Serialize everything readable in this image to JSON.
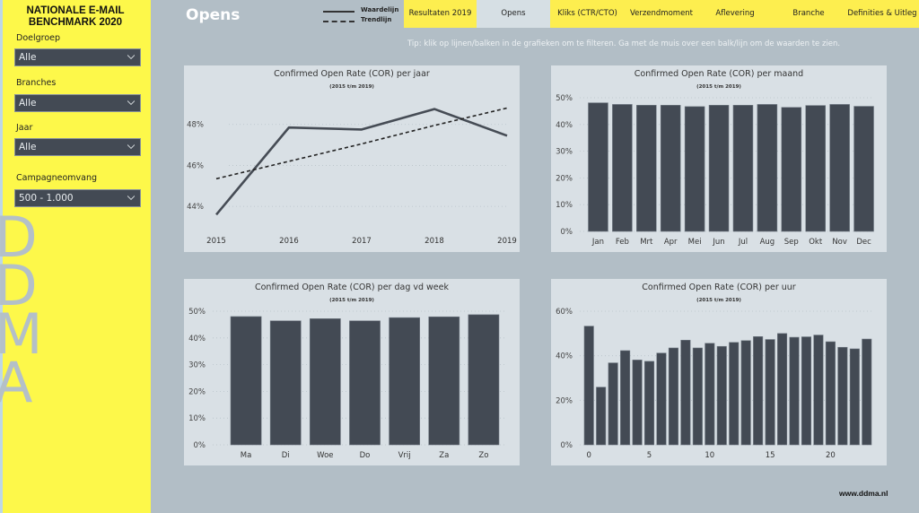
{
  "sidebar": {
    "title_line1": "NATIONALE E-MAIL",
    "title_line2": "BENCHMARK 2020",
    "watermark": "DDMA",
    "filters": [
      {
        "label": "Doelgroep",
        "value": "Alle",
        "icon": "chevron-down-icon"
      },
      {
        "label": "Branches",
        "value": "Alle",
        "icon": "chevron-down-icon"
      },
      {
        "label": "Jaar",
        "value": "Alle",
        "icon": "chevron-down-icon"
      },
      {
        "label": "Campagneomvang",
        "value": "500 - 1.000",
        "icon": "chevron-down-icon"
      }
    ]
  },
  "header": {
    "page_title": "Opens",
    "legend": {
      "solid": "Waardelijn",
      "dashed": "Trendlijn"
    },
    "tabs": [
      {
        "label": "Resultaten 2019",
        "active": false
      },
      {
        "label": "Opens",
        "active": true
      },
      {
        "label": "Kliks (CTR/CTO)",
        "active": false
      },
      {
        "label": "Verzendmoment",
        "active": false
      },
      {
        "label": "Aflevering",
        "active": false
      },
      {
        "label": "Branche",
        "active": false
      },
      {
        "label": "Definities & Uitleg",
        "active": false
      }
    ],
    "tip": "Tip: klik op lijnen/balken in de grafieken om te filteren. Ga met de muis over een balk/lijn om de waarden te zien."
  },
  "colors": {
    "sidebar_bg": "#fdf84a",
    "page_bg": "#b2bec6",
    "panel_bg": "#d9e0e5",
    "bar": "#434a54",
    "tab_yellow": "#fdee4f",
    "tab_active": "#d6dfe4"
  },
  "footer": {
    "url": "www.ddma.nl"
  },
  "chart_data": [
    {
      "id": "per-jaar",
      "type": "line",
      "title": "Confirmed Open Rate (COR) per jaar",
      "subtitle": "(2015 t/m 2019)",
      "categories": [
        "2015",
        "2016",
        "2017",
        "2018",
        "2019"
      ],
      "series": [
        {
          "name": "Waardelijn",
          "style": "solid",
          "values": [
            43.6,
            47.85,
            47.75,
            48.75,
            47.45
          ]
        },
        {
          "name": "Trendlijn",
          "style": "dashed",
          "values": [
            45.35,
            46.2,
            47.05,
            47.95,
            48.8
          ]
        }
      ],
      "yticks": [
        44,
        46,
        48
      ],
      "ytick_labels": [
        "44%",
        "46%",
        "48%"
      ],
      "ylim": [
        43.0,
        49.3
      ],
      "grid": true
    },
    {
      "id": "per-maand",
      "type": "bar",
      "title": "Confirmed Open Rate (COR) per maand",
      "subtitle": "(2015 t/m 2019)",
      "categories": [
        "Jan",
        "Feb",
        "Mrt",
        "Apr",
        "Mei",
        "Jun",
        "Jul",
        "Aug",
        "Sep",
        "Okt",
        "Nov",
        "Dec"
      ],
      "values": [
        48.1,
        47.5,
        47.2,
        47.2,
        46.7,
        47.2,
        47.2,
        47.5,
        46.4,
        47.1,
        47.5,
        46.8
      ],
      "yticks": [
        0,
        10,
        20,
        30,
        40,
        50
      ],
      "ytick_labels": [
        "0%",
        "10%",
        "20%",
        "30%",
        "40%",
        "50%"
      ],
      "ylim": [
        0,
        50
      ],
      "grid": true
    },
    {
      "id": "per-dag",
      "type": "bar",
      "title": "Confirmed Open Rate (COR) per dag vd week",
      "subtitle": "(2015 t/m 2019)",
      "categories": [
        "Ma",
        "Di",
        "Woe",
        "Do",
        "Vrij",
        "Za",
        "Zo"
      ],
      "values": [
        48.0,
        46.4,
        47.2,
        46.4,
        47.6,
        47.9,
        48.7
      ],
      "yticks": [
        0,
        10,
        20,
        30,
        40,
        50
      ],
      "ytick_labels": [
        "0%",
        "10%",
        "20%",
        "30%",
        "40%",
        "50%"
      ],
      "ylim": [
        0,
        50
      ],
      "grid": true
    },
    {
      "id": "per-uur",
      "type": "bar",
      "title": "Confirmed Open Rate (COR) per uur",
      "subtitle": "(2015 t/m 2019)",
      "categories": [
        "0",
        "1",
        "2",
        "3",
        "4",
        "5",
        "6",
        "7",
        "8",
        "9",
        "10",
        "11",
        "12",
        "13",
        "14",
        "15",
        "16",
        "17",
        "18",
        "19",
        "20",
        "21",
        "22",
        "23"
      ],
      "values": [
        53.3,
        25.9,
        36.8,
        42.3,
        38.1,
        37.5,
        41.2,
        43.5,
        47.0,
        43.5,
        45.6,
        44.2,
        46.0,
        46.8,
        48.6,
        47.3,
        50.0,
        48.3,
        48.5,
        49.3,
        46.3,
        43.8,
        43.1,
        47.5
      ],
      "xtick_labels": [
        "0",
        "5",
        "10",
        "15",
        "20"
      ],
      "xtick_positions": [
        0,
        5,
        10,
        15,
        20
      ],
      "yticks": [
        0,
        20,
        40,
        60
      ],
      "ytick_labels": [
        "0%",
        "20%",
        "40%",
        "60%"
      ],
      "ylim": [
        0,
        60
      ],
      "grid": true
    }
  ]
}
